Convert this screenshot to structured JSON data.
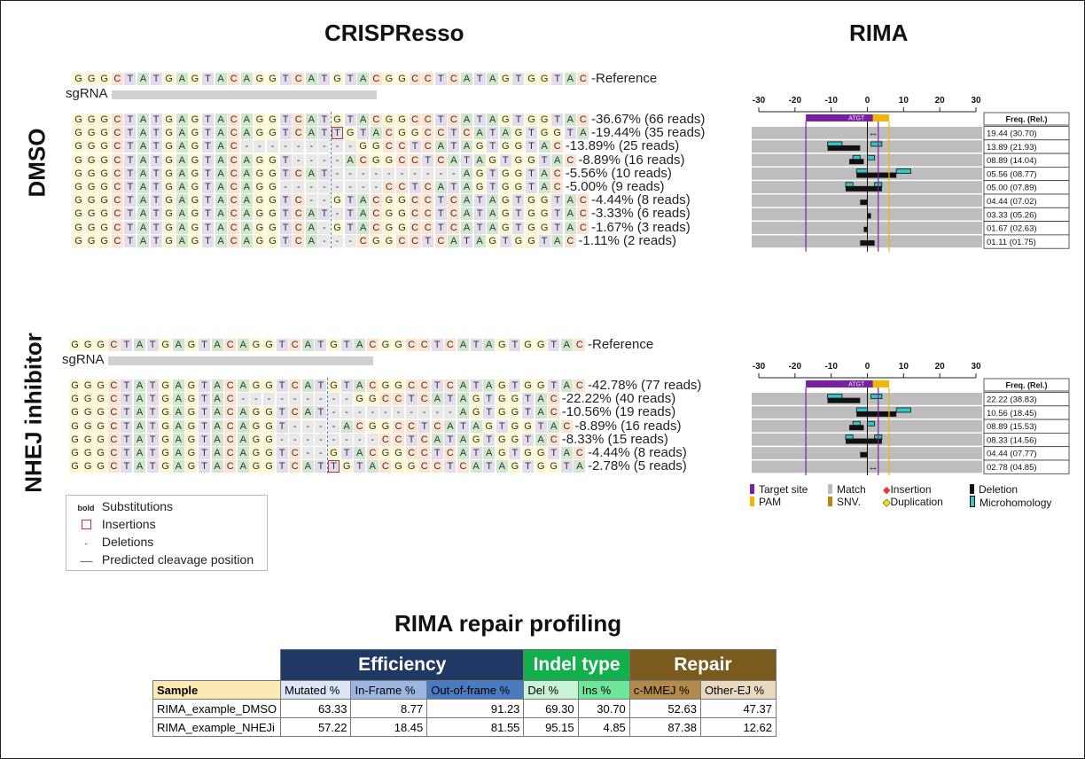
{
  "titles": {
    "left": "CRISPResso",
    "right": "RIMA",
    "bottom": "RIMA repair profiling"
  },
  "sections": [
    {
      "label": "DMSO",
      "reference_label": "Reference",
      "sgrna_label": "sgRNA",
      "reference": "GGGCTATGAGTACAGGTCATGTACGGCCTCATAGTGGTAC",
      "reads": [
        {
          "seq": "GGGCTATGAGTACAGGTCATGTACGGCCTCATAGTGGTAC",
          "ins": -1,
          "label": "36.67% (66 reads)"
        },
        {
          "seq": "GGGCTATGAGTACAGGTCATTGTACGGCCTCATAGTGGTA",
          "ins": 20,
          "label": "19.44% (35 reads)"
        },
        {
          "seq": "GGGCTATGAGTAC---------GGCCTCATAGTGGTAC",
          "ins": -1,
          "label": "13.89% (25 reads)"
        },
        {
          "seq": "GGGCTATGAGTACAGGT----ACGGCCTCATAGTGGTAC",
          "ins": -1,
          "label": "8.89% (16 reads)"
        },
        {
          "seq": "GGGCTATGAGTACAGGTCAT----------AGTGGTAC",
          "ins": -1,
          "label": "5.56% (10 reads)"
        },
        {
          "seq": "GGGCTATGAGTACAGG--------CCTCATAGTGGTAC",
          "ins": -1,
          "label": "5.00% (9 reads)"
        },
        {
          "seq": "GGGCTATGAGTACAGGTC--GTACGGCCTCATAGTGGTAC",
          "ins": -1,
          "label": "4.44% (8 reads)"
        },
        {
          "seq": "GGGCTATGAGTACAGGTCAT-TACGGCCTCATAGTGGTAC",
          "ins": -1,
          "label": "3.33% (6 reads)"
        },
        {
          "seq": "GGGCTATGAGTACAGGTCA-GTACGGCCTCATAGTGGTAC",
          "ins": -1,
          "label": "1.67% (3 reads)"
        },
        {
          "seq": "GGGCTATGAGTACAGGTCA---CGGCCTCATAGTGGTAC",
          "ins": -1,
          "label": "1.11% (2 reads)"
        }
      ],
      "rima": {
        "freq_header": "Freq. (Rel.)",
        "target_label": "ATGT",
        "freqs": [
          "19.44 (30.70)",
          "13.89 (21.93)",
          "08.89 (14.04)",
          "05.56 (08.77)",
          "05.00 (07.89)",
          "04.44 (07.02)",
          "03.33 (05.26)",
          "01.67 (02.63)",
          "01.11 (01.75)"
        ],
        "events": [
          {
            "type": "ins",
            "pos": 1
          },
          {
            "type": "del",
            "start": -11,
            "end": -2,
            "mh": [
              [
                -11,
                -7
              ],
              [
                1,
                4
              ]
            ]
          },
          {
            "type": "del",
            "start": -5,
            "end": -1,
            "mh": [
              [
                -4,
                -2
              ],
              [
                0,
                2
              ]
            ]
          },
          {
            "type": "del",
            "start": -3,
            "end": 8,
            "mh": [
              [
                -3,
                0
              ],
              [
                8,
                12
              ]
            ]
          },
          {
            "type": "del",
            "start": -6,
            "end": 4,
            "mh": [
              [
                -6,
                -4
              ],
              [
                2,
                4
              ]
            ]
          },
          {
            "type": "del",
            "start": -2,
            "end": 0,
            "mh": []
          },
          {
            "type": "del",
            "start": 0,
            "end": 1,
            "mh": []
          },
          {
            "type": "del",
            "start": -1,
            "end": 0,
            "mh": []
          },
          {
            "type": "del",
            "start": -2,
            "end": 2,
            "mh": []
          }
        ]
      }
    },
    {
      "label": "NHEJ inhibitor",
      "reference_label": "Reference",
      "sgrna_label": "sgRNA",
      "reference": "GGGCTATGAGTACAGGTCATGTACGGCCTCATAGTGGTAC",
      "reads": [
        {
          "seq": "GGGCTATGAGTACAGGTCATGTACGGCCTCATAGTGGTAC",
          "ins": -1,
          "label": "42.78% (77 reads)"
        },
        {
          "seq": "GGGCTATGAGTAC---------GGCCTCATAGTGGTAC",
          "ins": -1,
          "label": "22.22% (40 reads)"
        },
        {
          "seq": "GGGCTATGAGTACAGGTCAT----------AGTGGTAC",
          "ins": -1,
          "label": "10.56% (19 reads)"
        },
        {
          "seq": "GGGCTATGAGTACAGGT----ACGGCCTCATAGTGGTAC",
          "ins": -1,
          "label": "8.89% (16 reads)"
        },
        {
          "seq": "GGGCTATGAGTACAGG--------CCTCATAGTGGTAC",
          "ins": -1,
          "label": "8.33% (15 reads)"
        },
        {
          "seq": "GGGCTATGAGTACAGGTC--GTACGGCCTCATAGTGGTAC",
          "ins": -1,
          "label": "4.44% (8 reads)"
        },
        {
          "seq": "GGGCTATGAGTACAGGTCATTGTACGGCCTCATAGTGGTA",
          "ins": 20,
          "label": "2.78% (5 reads)"
        }
      ],
      "rima": {
        "freq_header": "Freq. (Rel.)",
        "target_label": "ATGT",
        "freqs": [
          "22.22 (38.83)",
          "10.56 (18.45)",
          "08.89 (15.53)",
          "08.33 (14.56)",
          "04.44 (07.77)",
          "02.78 (04.85)"
        ],
        "events": [
          {
            "type": "del",
            "start": -11,
            "end": -2,
            "mh": [
              [
                -11,
                -7
              ],
              [
                1,
                4
              ]
            ]
          },
          {
            "type": "del",
            "start": -3,
            "end": 8,
            "mh": [
              [
                -3,
                0
              ],
              [
                8,
                12
              ]
            ]
          },
          {
            "type": "del",
            "start": -5,
            "end": -1,
            "mh": [
              [
                -4,
                -2
              ],
              [
                0,
                2
              ]
            ]
          },
          {
            "type": "del",
            "start": -6,
            "end": 4,
            "mh": [
              [
                -6,
                -4
              ],
              [
                2,
                4
              ]
            ]
          },
          {
            "type": "del",
            "start": -2,
            "end": 0,
            "mh": []
          },
          {
            "type": "ins",
            "pos": 1
          }
        ]
      }
    }
  ],
  "axis": {
    "ticks": [
      "-30",
      "-20",
      "-10",
      "0",
      "10",
      "20",
      "30"
    ]
  },
  "legend": {
    "bold_symbol": "bold",
    "items": [
      "Substitutions",
      "Insertions",
      "Deletions",
      "Predicted cleavage position"
    ],
    "deletion_symbol": "-",
    "cleavage_symbol": "-------"
  },
  "rima_legend": {
    "target_site": "Target site",
    "pam": "PAM",
    "match": "Match",
    "snv": "SNV.",
    "insertion": "Insertion",
    "duplication": "Duplication",
    "deletion": "Deletion",
    "microhomology": "Microhomology",
    "colors": {
      "target": "#7b1fa2",
      "pam": "#f5b400",
      "match": "#bdbdbd",
      "snv": "#b8860b",
      "insertion": "#e53935",
      "duplication": "#f5e000",
      "deletion": "#111111",
      "mh": "#35c5c9"
    }
  },
  "profiling": {
    "groups": [
      {
        "label": "Efficiency",
        "color": "#1f3864"
      },
      {
        "label": "Indel type",
        "color": "#12b04c"
      },
      {
        "label": "Repair",
        "color": "#7b5a1e"
      }
    ],
    "columns": [
      "Sample",
      "Mutated %",
      "In-Frame %",
      "Out-of-frame %",
      "Del %",
      "Ins %",
      "c-MMEJ %",
      "Other-EJ %"
    ],
    "column_colors": [
      "#fde9b4",
      "#dbe5f4",
      "#9bb6e0",
      "#4a7ac0",
      "#c9f2d7",
      "#6fe49a",
      "#b28a4c",
      "#e8d9c0"
    ],
    "rows": [
      [
        "RIMA_example_DMSO",
        "63.33",
        "8.77",
        "91.23",
        "69.30",
        "30.70",
        "52.63",
        "47.37"
      ],
      [
        "RIMA_example_NHEJi",
        "57.22",
        "18.45",
        "81.55",
        "95.15",
        "4.85",
        "87.38",
        "12.62"
      ]
    ]
  }
}
